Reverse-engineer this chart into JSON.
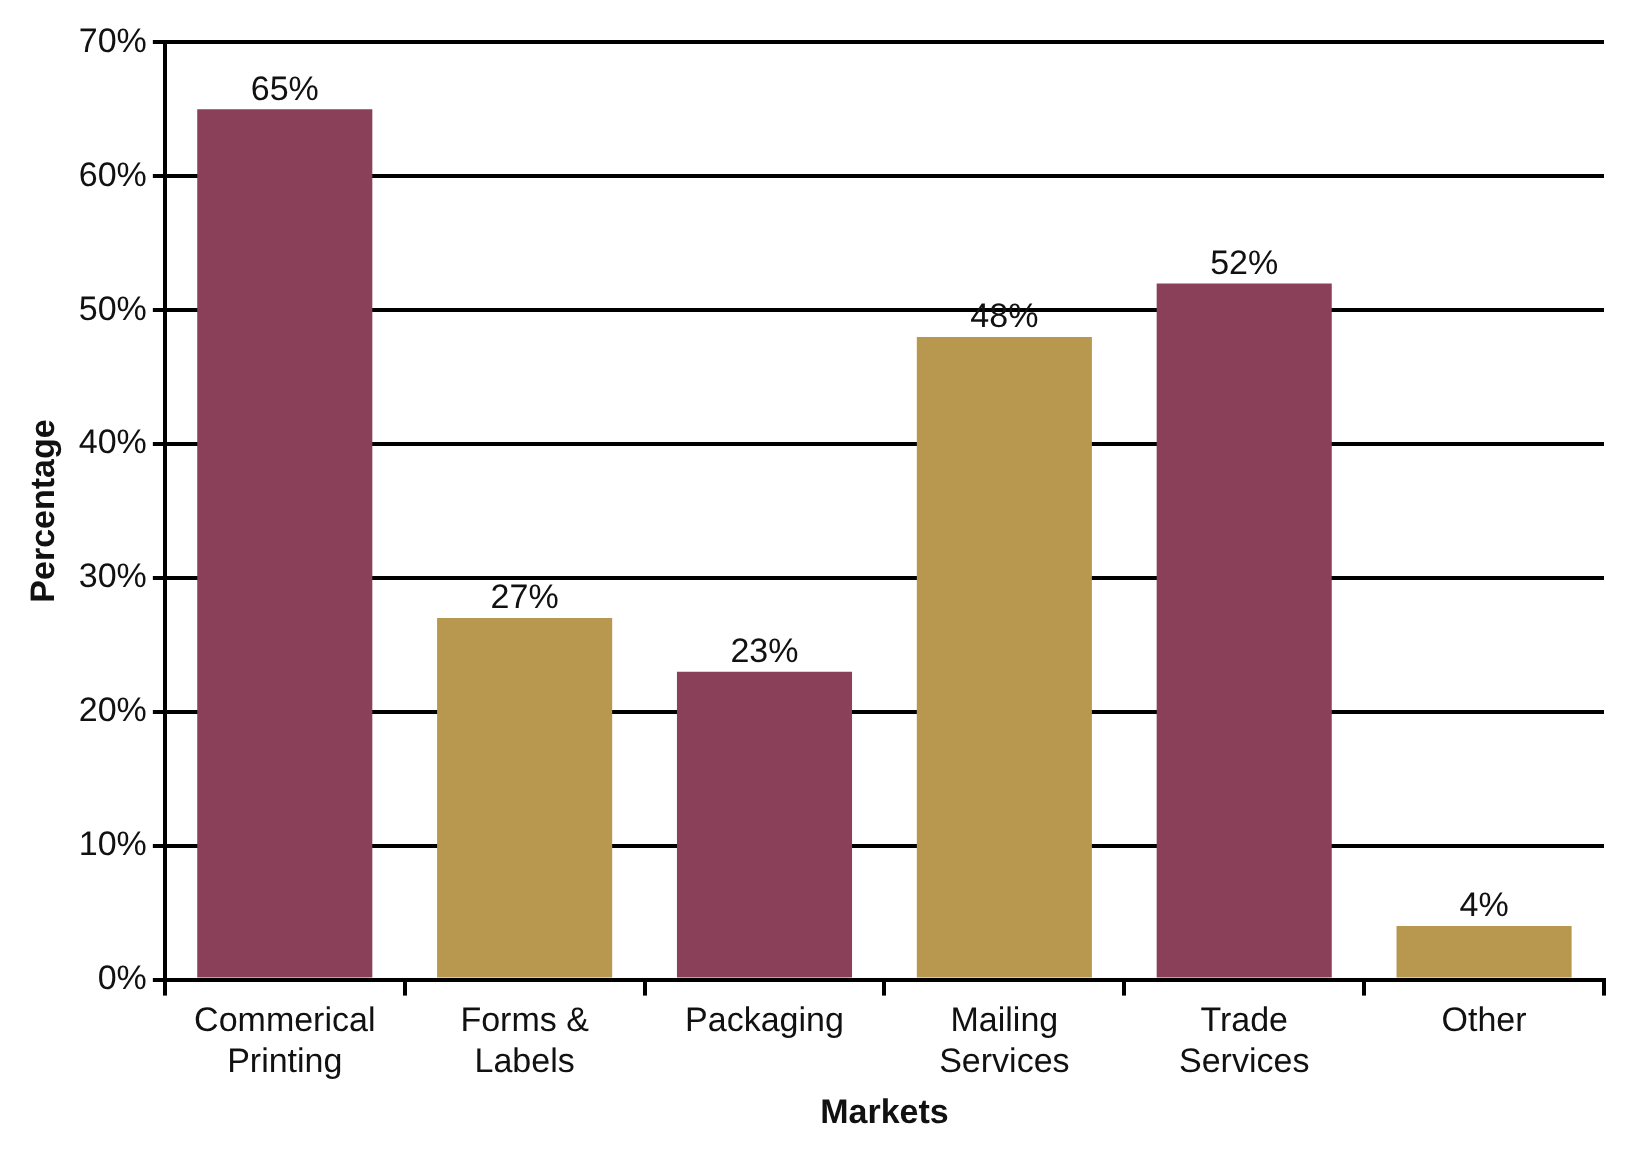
{
  "chart_data": {
    "type": "bar",
    "xlabel": "Markets",
    "ylabel": "Percentage",
    "categories": [
      "Commerical Printing",
      "Forms & Labels",
      "Packaging",
      "Mailing Services",
      "Trade Services",
      "Other"
    ],
    "values": [
      65,
      27,
      23,
      48,
      52,
      4
    ],
    "colors": [
      "#8b405a",
      "#b8974f",
      "#8b405a",
      "#b8974f",
      "#8b405a",
      "#b8974f"
    ],
    "value_labels": [
      "65%",
      "27%",
      "23%",
      "48%",
      "52%",
      "4%"
    ],
    "ylim": [
      0,
      70
    ],
    "yticks": [
      {
        "value": 0,
        "label": "0%"
      },
      {
        "value": 10,
        "label": "10%"
      },
      {
        "value": 20,
        "label": "20%"
      },
      {
        "value": 30,
        "label": "30%"
      },
      {
        "value": 40,
        "label": "40%"
      },
      {
        "value": 50,
        "label": "50%"
      },
      {
        "value": 60,
        "label": "60%"
      },
      {
        "value": 70,
        "label": "70%"
      }
    ],
    "grid": "y",
    "legend": false
  }
}
